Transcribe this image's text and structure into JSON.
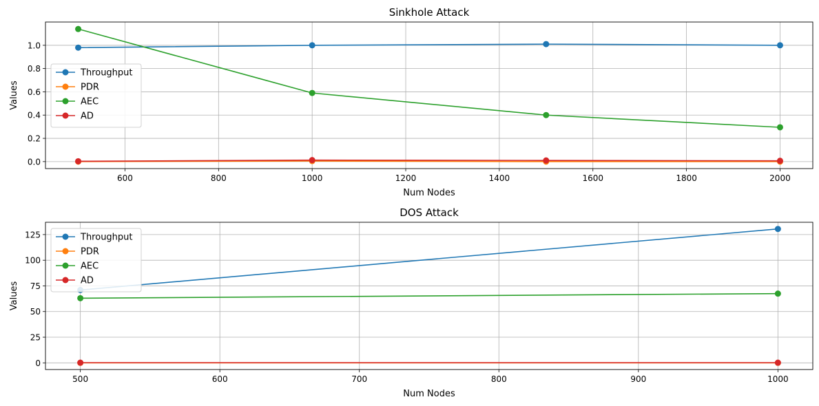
{
  "chart_data": [
    {
      "type": "line",
      "title": "Sinkhole Attack",
      "xlabel": "Num Nodes",
      "ylabel": "Values",
      "x": [
        500,
        1000,
        1500,
        2000
      ],
      "xlim": [
        430,
        2070
      ],
      "ylim": [
        -0.06,
        1.2
      ],
      "xticks": [
        600,
        800,
        1000,
        1200,
        1400,
        1600,
        1800,
        2000
      ],
      "xtick_labels": [
        "600",
        "800",
        "1000",
        "1200",
        "1400",
        "1600",
        "1800",
        "2000"
      ],
      "yticks": [
        0.0,
        0.2,
        0.4,
        0.6,
        0.8,
        1.0
      ],
      "ytick_labels": [
        "0.0",
        "0.2",
        "0.4",
        "0.6",
        "0.8",
        "1.0"
      ],
      "grid": true,
      "legend_position": "center-left",
      "series": [
        {
          "name": "Throughput",
          "color": "#1f77b4",
          "values": [
            0.98,
            1.0,
            1.01,
            1.0
          ]
        },
        {
          "name": "PDR",
          "color": "#ff7f0e",
          "values": [
            0.0,
            0.005,
            0.0,
            0.0
          ]
        },
        {
          "name": "AEC",
          "color": "#2ca02c",
          "values": [
            1.14,
            0.59,
            0.4,
            0.295
          ]
        },
        {
          "name": "AD",
          "color": "#d62728",
          "values": [
            0.003,
            0.013,
            0.01,
            0.007
          ]
        }
      ]
    },
    {
      "type": "line",
      "title": "DOS Attack",
      "xlabel": "Num Nodes",
      "ylabel": "Values",
      "x": [
        500,
        1000
      ],
      "xlim": [
        475,
        1025
      ],
      "ylim": [
        -6.5,
        137
      ],
      "xticks": [
        500,
        600,
        700,
        800,
        900,
        1000
      ],
      "xtick_labels": [
        "500",
        "600",
        "700",
        "800",
        "900",
        "1000"
      ],
      "yticks": [
        0,
        25,
        50,
        75,
        100,
        125
      ],
      "ytick_labels": [
        "0",
        "25",
        "50",
        "75",
        "100",
        "125"
      ],
      "grid": true,
      "legend_position": "top-left",
      "series": [
        {
          "name": "Throughput",
          "color": "#1f77b4",
          "values": [
            71,
            130.5
          ]
        },
        {
          "name": "PDR",
          "color": "#ff7f0e",
          "values": [
            0,
            0
          ]
        },
        {
          "name": "AEC",
          "color": "#2ca02c",
          "values": [
            63,
            67.5
          ]
        },
        {
          "name": "AD",
          "color": "#d62728",
          "values": [
            0.2,
            0.2
          ]
        }
      ]
    }
  ]
}
